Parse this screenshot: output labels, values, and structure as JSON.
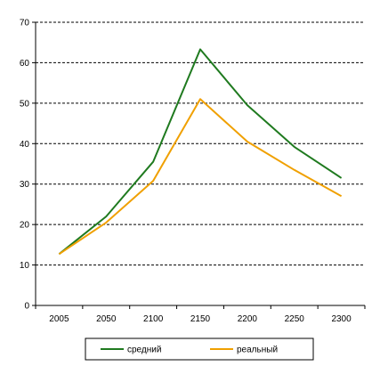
{
  "chart_data": {
    "type": "line",
    "title": "",
    "xlabel": "",
    "ylabel": "",
    "categories": [
      "2005",
      "2050",
      "2100",
      "2150",
      "2200",
      "2250",
      "2300"
    ],
    "ylim": [
      0,
      70
    ],
    "yticks": [
      "0",
      "10",
      "20",
      "30",
      "40",
      "50",
      "60",
      "70"
    ],
    "grid": "horizontal dashed",
    "legend_position": "bottom",
    "series": [
      {
        "name": "средний",
        "color": "#1f7a1f",
        "values": [
          12.7,
          22.0,
          35.5,
          63.3,
          49.5,
          39.2,
          31.5
        ]
      },
      {
        "name": "реальный",
        "color": "#f0a000",
        "values": [
          12.7,
          20.5,
          30.8,
          51.0,
          40.5,
          33.5,
          27.0
        ]
      }
    ]
  }
}
